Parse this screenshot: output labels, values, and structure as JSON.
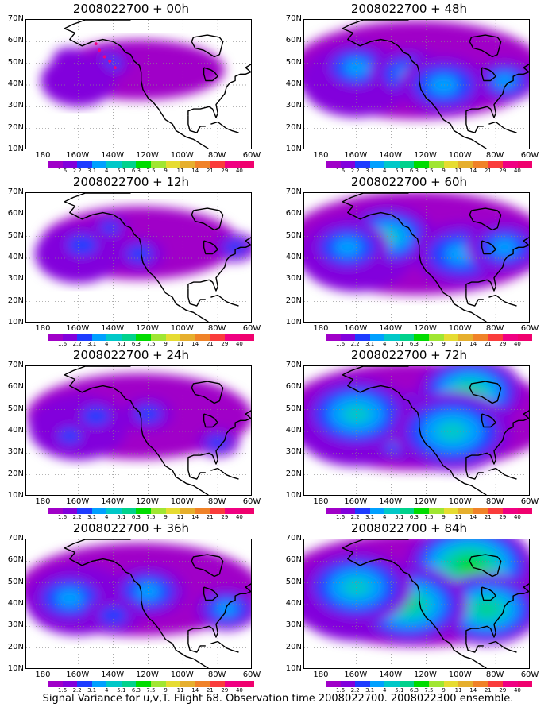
{
  "caption": "Signal Variance for u,v,T. Flight 68. Observation time 2008022700. 2008022300 ensemble.",
  "axes": {
    "lat_labels": [
      "70N",
      "60N",
      "50N",
      "40N",
      "30N",
      "20N",
      "10N"
    ],
    "lon_labels": [
      "180",
      "160W",
      "140W",
      "120W",
      "100W",
      "80W",
      "60W"
    ],
    "lon_range": [
      -190,
      -60
    ],
    "lat_range": [
      10,
      70
    ],
    "grid": "dotted"
  },
  "colorbar": {
    "levels": [
      "1.6",
      "2.2",
      "3.1",
      "4",
      "5.1",
      "6.3",
      "7.5",
      "9",
      "11",
      "14",
      "21",
      "29",
      "40"
    ],
    "colors": [
      "#a000c8",
      "#8200dc",
      "#1e3cff",
      "#00a0ff",
      "#00c8c8",
      "#00d28c",
      "#00dc00",
      "#a0e632",
      "#e6dc32",
      "#e6af2d",
      "#f08228",
      "#fa3c3c",
      "#f00082"
    ]
  },
  "chart_data": [
    {
      "type": "heatmap",
      "title": "2008022700 + 00h",
      "intensity": 0.35,
      "spread": 0.25,
      "blobs": [
        [
          -142,
          50,
          3.3,
          1.0
        ],
        [
          -150,
          47,
          2.5,
          1.4
        ],
        [
          -165,
          52,
          2,
          1.6
        ]
      ],
      "track": [
        [
          -150,
          59
        ],
        [
          -148,
          56
        ],
        [
          -145,
          53
        ],
        [
          -142,
          51
        ],
        [
          -139,
          48
        ]
      ]
    },
    {
      "type": "heatmap",
      "title": "2008022700 + 48h",
      "intensity": 0.8,
      "spread": 1.0,
      "blobs": [
        [
          -160,
          48,
          3.2,
          1.2
        ],
        [
          -130,
          45,
          3.0,
          1.2
        ],
        [
          -75,
          42,
          3.5,
          1.0
        ],
        [
          -110,
          40,
          2.6,
          1.4
        ]
      ]
    },
    {
      "type": "heatmap",
      "title": "2008022700 + 12h",
      "intensity": 0.55,
      "spread": 0.5,
      "blobs": [
        [
          -142,
          54,
          3.6,
          0.9
        ],
        [
          -158,
          46,
          2.5,
          1.4
        ],
        [
          -70,
          45,
          3,
          1.0
        ],
        [
          -125,
          42,
          2.4,
          1.2
        ]
      ]
    },
    {
      "type": "heatmap",
      "title": "2008022700 + 60h",
      "intensity": 0.9,
      "spread": 1.1,
      "blobs": [
        [
          -142,
          50,
          3.5,
          1.1
        ],
        [
          -165,
          45,
          3.0,
          1.3
        ],
        [
          -100,
          42,
          3.0,
          1.5
        ],
        [
          -75,
          45,
          2.8,
          1.2
        ]
      ]
    },
    {
      "type": "heatmap",
      "title": "2008022700 + 24h",
      "intensity": 0.6,
      "spread": 0.75,
      "blobs": [
        [
          -150,
          47,
          3.0,
          1.3
        ],
        [
          -120,
          48,
          2.8,
          1.2
        ],
        [
          -165,
          38,
          2.5,
          1.1
        ],
        [
          -80,
          35,
          2.5,
          1.0
        ]
      ]
    },
    {
      "type": "heatmap",
      "title": "2008022700 + 72h",
      "intensity": 1.0,
      "spread": 1.2,
      "blobs": [
        [
          -130,
          42,
          4.2,
          1.0
        ],
        [
          -95,
          58,
          4.0,
          1.0
        ],
        [
          -160,
          48,
          3.0,
          1.3
        ],
        [
          -105,
          40,
          3.2,
          1.4
        ]
      ]
    },
    {
      "type": "heatmap",
      "title": "2008022700 + 36h",
      "intensity": 0.7,
      "spread": 0.9,
      "blobs": [
        [
          -165,
          43,
          3.0,
          1.3
        ],
        [
          -120,
          46,
          3.0,
          1.2
        ],
        [
          -75,
          38,
          3.2,
          1.0
        ],
        [
          -140,
          35,
          2.4,
          1.3
        ]
      ]
    },
    {
      "type": "heatmap",
      "title": "2008022700 + 84h",
      "intensity": 1.1,
      "spread": 1.3,
      "blobs": [
        [
          -95,
          58,
          4.6,
          1.0
        ],
        [
          -85,
          38,
          4.4,
          1.0
        ],
        [
          -130,
          40,
          3.8,
          1.1
        ],
        [
          -160,
          48,
          3.2,
          1.3
        ]
      ]
    }
  ]
}
